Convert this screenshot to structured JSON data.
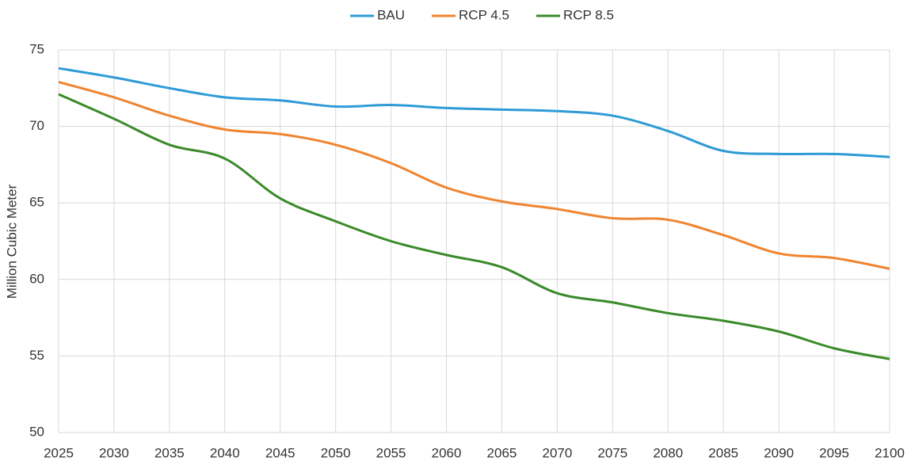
{
  "chart_data": {
    "type": "line",
    "y_label": "Million Cubic Meter",
    "x": [
      2025,
      2030,
      2035,
      2040,
      2045,
      2050,
      2055,
      2060,
      2065,
      2070,
      2075,
      2080,
      2085,
      2090,
      2095,
      2100
    ],
    "xlim": [
      2025,
      2100
    ],
    "xticks": [
      2025,
      2030,
      2035,
      2040,
      2045,
      2050,
      2055,
      2060,
      2065,
      2070,
      2075,
      2080,
      2085,
      2090,
      2095,
      2100
    ],
    "ylim": [
      50,
      75
    ],
    "yticks": [
      50,
      55,
      60,
      65,
      70,
      75
    ],
    "grid": true,
    "legend": "top",
    "series": [
      {
        "name": "BAU",
        "color": "#2e9bd6",
        "values": [
          73.8,
          73.2,
          72.5,
          71.9,
          71.7,
          71.3,
          71.4,
          71.2,
          71.1,
          71.0,
          70.7,
          69.7,
          68.4,
          68.2,
          68.2,
          68.0
        ]
      },
      {
        "name": "RCP 4.5",
        "color": "#f0842f",
        "values": [
          72.9,
          71.9,
          70.7,
          69.8,
          69.5,
          68.8,
          67.6,
          66.0,
          65.1,
          64.6,
          64.0,
          63.9,
          62.9,
          61.7,
          61.4,
          60.7
        ]
      },
      {
        "name": "RCP 8.5",
        "color": "#3a8a2a",
        "values": [
          72.1,
          70.5,
          68.8,
          67.9,
          65.3,
          63.8,
          62.5,
          61.6,
          60.8,
          59.1,
          58.5,
          57.8,
          57.3,
          56.6,
          55.5,
          54.8
        ]
      }
    ]
  }
}
